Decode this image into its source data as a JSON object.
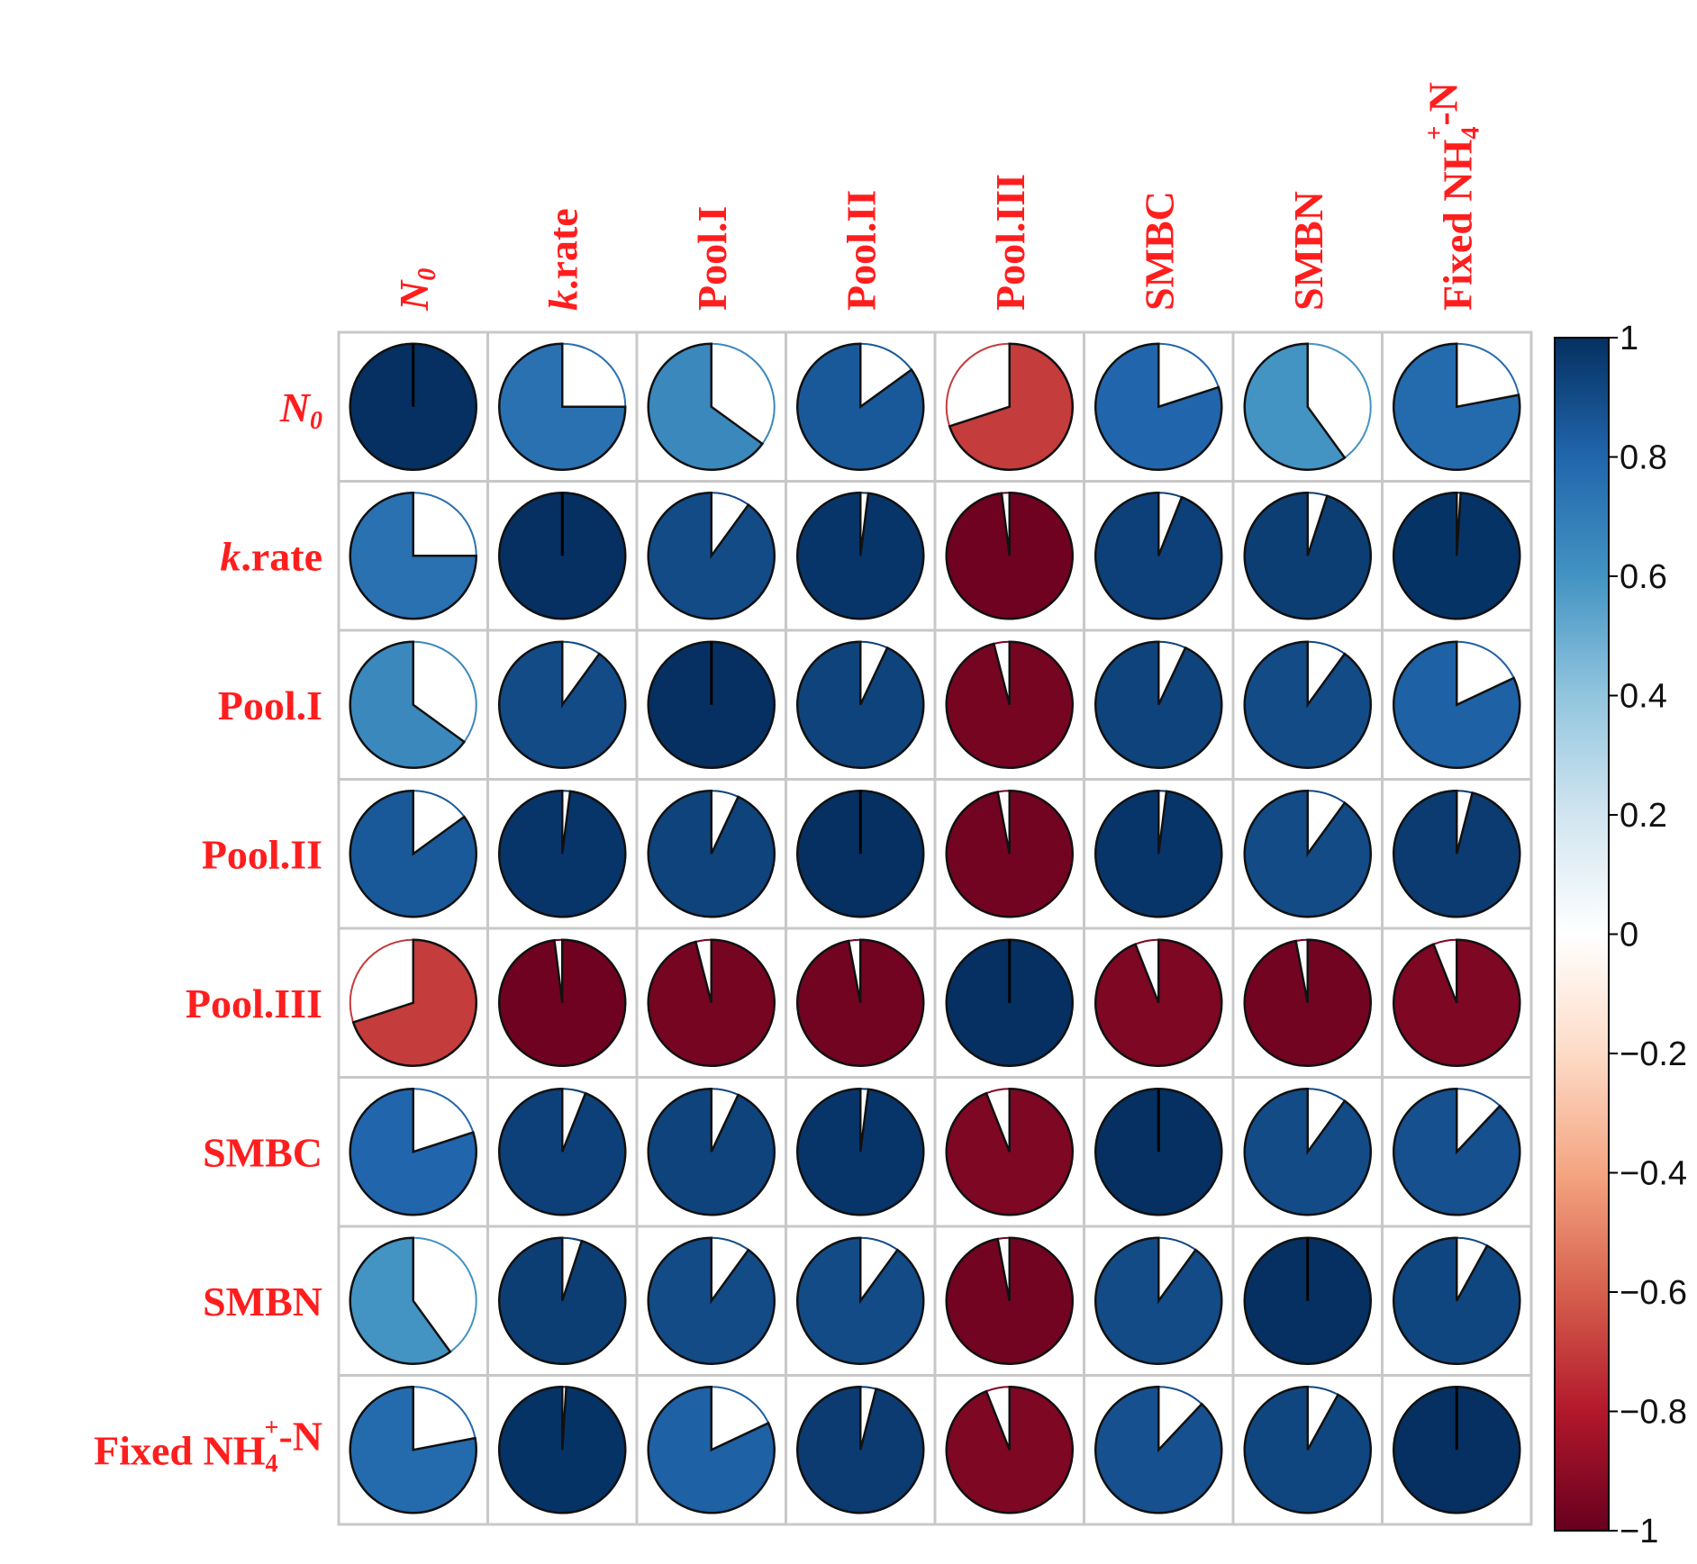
{
  "chart_data": {
    "type": "heatmap",
    "subtype": "correlation-pie",
    "variables": [
      {
        "name": "N",
        "sub": "0",
        "sup": "",
        "after": "",
        "italic": true
      },
      {
        "name": "k",
        "sub": "",
        "sup": "",
        "after": ".rate",
        "italic": true
      },
      {
        "name": "Pool.I",
        "sub": "",
        "sup": "",
        "after": "",
        "italic": false
      },
      {
        "name": "Pool.II",
        "sub": "",
        "sup": "",
        "after": "",
        "italic": false
      },
      {
        "name": "Pool.III",
        "sub": "",
        "sup": "",
        "after": "",
        "italic": false
      },
      {
        "name": "SMBC",
        "sub": "",
        "sup": "",
        "after": "",
        "italic": false
      },
      {
        "name": "SMBN",
        "sub": "",
        "sup": "",
        "after": "",
        "italic": false
      },
      {
        "name": "Fixed NH",
        "sub": "4",
        "sup": "+",
        "after": "-N",
        "italic": false
      }
    ],
    "matrix": [
      [
        1.0,
        0.75,
        0.65,
        0.85,
        -0.7,
        0.8,
        0.6,
        0.78
      ],
      [
        0.75,
        1.0,
        0.9,
        0.98,
        -0.98,
        0.94,
        0.95,
        0.99
      ],
      [
        0.65,
        0.9,
        1.0,
        0.93,
        -0.96,
        0.93,
        0.9,
        0.82
      ],
      [
        0.85,
        0.98,
        0.93,
        1.0,
        -0.97,
        0.98,
        0.9,
        0.96
      ],
      [
        -0.7,
        -0.98,
        -0.96,
        -0.97,
        1.0,
        -0.94,
        -0.97,
        -0.94
      ],
      [
        0.8,
        0.94,
        0.93,
        0.98,
        -0.94,
        1.0,
        0.9,
        0.88
      ],
      [
        0.6,
        0.95,
        0.9,
        0.9,
        -0.97,
        0.9,
        1.0,
        0.92
      ],
      [
        0.78,
        0.99,
        0.82,
        0.96,
        -0.94,
        0.88,
        0.92,
        1.0
      ]
    ],
    "colorbar": {
      "ticks": [
        "1",
        "0.8",
        "0.6",
        "0.4",
        "0.2",
        "0",
        "−0.2",
        "−0.4",
        "−0.6",
        "−0.8",
        "−1"
      ],
      "tick_values": [
        1,
        0.8,
        0.6,
        0.4,
        0.2,
        0,
        -0.2,
        -0.4,
        -0.6,
        -0.8,
        -1
      ],
      "range": [
        -1,
        1
      ]
    },
    "colormap": {
      "stops": [
        -1,
        -0.8,
        -0.6,
        -0.4,
        -0.2,
        0,
        0.2,
        0.4,
        0.6,
        0.8,
        1
      ],
      "colors": [
        "#67001f",
        "#b2182b",
        "#d6604d",
        "#f4a582",
        "#fddbc7",
        "#ffffff",
        "#d1e5f0",
        "#92c5de",
        "#4393c3",
        "#2166ac",
        "#053061"
      ]
    },
    "label_color": "#ff1e1e",
    "title": "",
    "xlabel": "",
    "ylabel": ""
  }
}
